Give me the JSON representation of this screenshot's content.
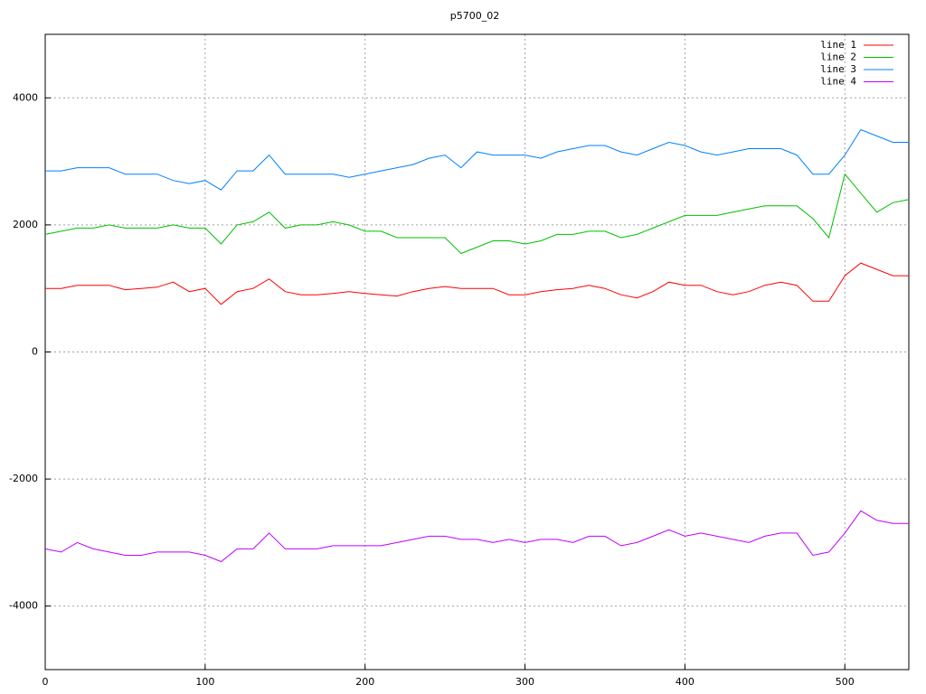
{
  "chart_data": {
    "type": "line",
    "title": "p5700_02",
    "x": [
      0,
      10,
      20,
      30,
      40,
      50,
      60,
      70,
      80,
      90,
      100,
      110,
      120,
      130,
      140,
      150,
      160,
      170,
      180,
      190,
      200,
      210,
      220,
      230,
      240,
      250,
      260,
      270,
      280,
      290,
      300,
      310,
      320,
      330,
      340,
      350,
      360,
      370,
      380,
      390,
      400,
      410,
      420,
      430,
      440,
      450,
      460,
      470,
      480,
      490,
      500,
      510,
      520,
      530,
      540
    ],
    "series": [
      {
        "name": "line 1",
        "color": "#ff0000",
        "values": [
          1000,
          1000,
          1050,
          1050,
          1050,
          980,
          1000,
          1020,
          1100,
          950,
          1000,
          750,
          950,
          1000,
          1150,
          950,
          900,
          900,
          920,
          950,
          920,
          900,
          880,
          950,
          1000,
          1030,
          1000,
          1000,
          1000,
          900,
          900,
          950,
          980,
          1000,
          1050,
          1000,
          900,
          850,
          950,
          1100,
          1050,
          1050,
          950,
          900,
          950,
          1050,
          1100,
          1050,
          800,
          800,
          1200,
          1400,
          1300,
          1200,
          1200
        ]
      },
      {
        "name": "line 2",
        "color": "#00c000",
        "values": [
          1850,
          1900,
          1950,
          1950,
          2000,
          1950,
          1950,
          1950,
          2000,
          1950,
          1950,
          1700,
          2000,
          2050,
          2200,
          1950,
          2000,
          2000,
          2050,
          2000,
          1900,
          1900,
          1800,
          1800,
          1800,
          1800,
          1550,
          1650,
          1750,
          1750,
          1700,
          1750,
          1850,
          1850,
          1900,
          1900,
          1800,
          1850,
          1950,
          2050,
          2150,
          2150,
          2150,
          2200,
          2250,
          2300,
          2300,
          2300,
          2100,
          1800,
          2800,
          2500,
          2200,
          2350,
          2400
        ]
      },
      {
        "name": "line 3",
        "color": "#0080ff",
        "values": [
          2850,
          2850,
          2900,
          2900,
          2900,
          2800,
          2800,
          2800,
          2700,
          2650,
          2700,
          2550,
          2850,
          2850,
          3100,
          2800,
          2800,
          2800,
          2800,
          2750,
          2800,
          2850,
          2900,
          2950,
          3050,
          3100,
          2900,
          3150,
          3100,
          3100,
          3100,
          3050,
          3150,
          3200,
          3250,
          3250,
          3150,
          3100,
          3200,
          3300,
          3250,
          3150,
          3100,
          3150,
          3200,
          3200,
          3200,
          3100,
          2800,
          2800,
          3100,
          3500,
          3400,
          3300,
          3300
        ]
      },
      {
        "name": "line 4",
        "color": "#c000ff",
        "values": [
          -3100,
          -3150,
          -3000,
          -3100,
          -3150,
          -3200,
          -3200,
          -3150,
          -3150,
          -3150,
          -3200,
          -3300,
          -3100,
          -3100,
          -2850,
          -3100,
          -3100,
          -3100,
          -3050,
          -3050,
          -3050,
          -3050,
          -3000,
          -2950,
          -2900,
          -2900,
          -2950,
          -2950,
          -3000,
          -2950,
          -3000,
          -2950,
          -2950,
          -3000,
          -2900,
          -2900,
          -3050,
          -3000,
          -2900,
          -2800,
          -2900,
          -2850,
          -2900,
          -2950,
          -3000,
          -2900,
          -2850,
          -2850,
          -3200,
          -3150,
          -2850,
          -2500,
          -2650,
          -2700,
          -2700
        ]
      }
    ],
    "xlim": [
      0,
      540
    ],
    "xticks": [
      0,
      100,
      200,
      300,
      400,
      500
    ],
    "ylim": [
      -5000,
      5000
    ],
    "yticks": [
      -4000,
      -2000,
      0,
      2000,
      4000
    ],
    "grid": true,
    "legend": "top-right"
  }
}
